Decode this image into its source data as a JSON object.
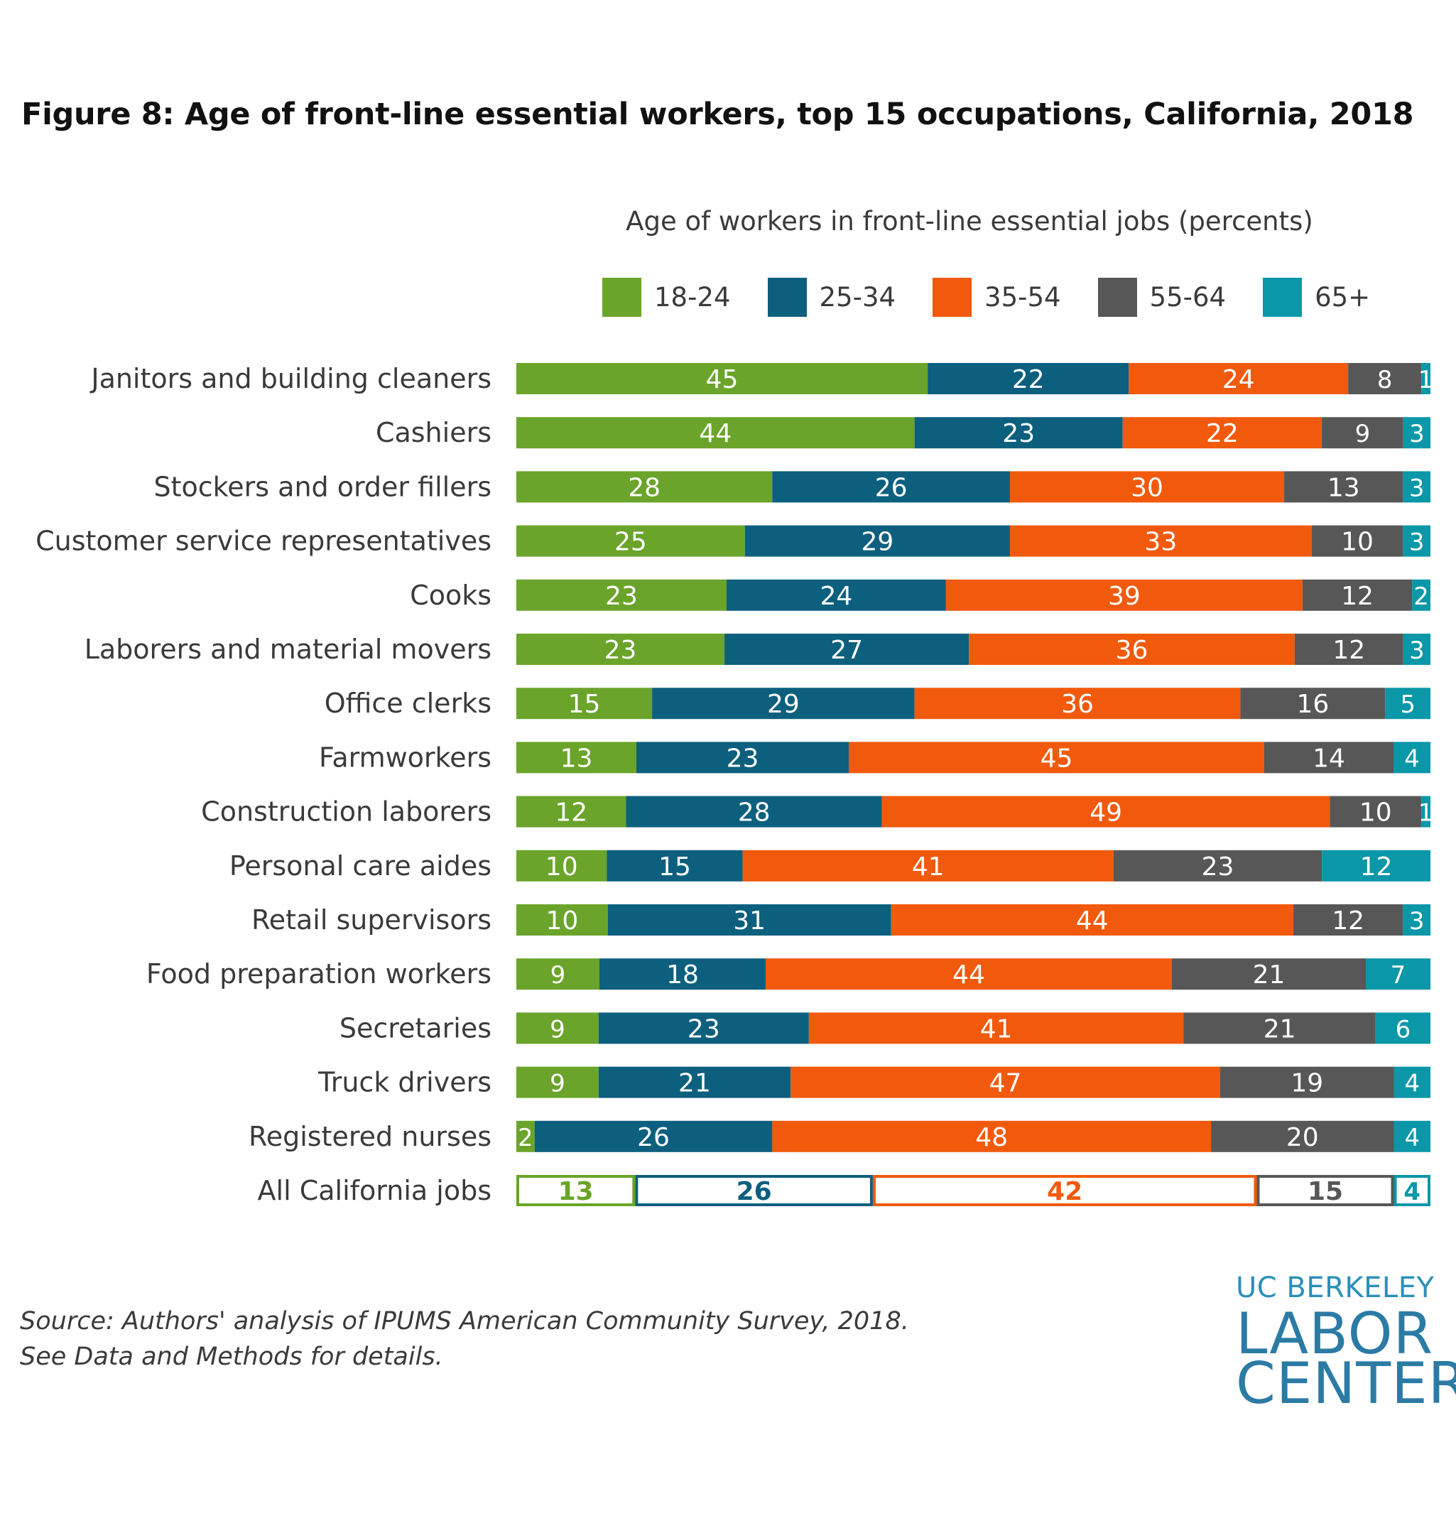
{
  "chart_data": {
    "type": "bar",
    "orientation": "horizontal",
    "stacked": true,
    "title": "Figure 8: Age of front-line essential workers, top 15 occupations, California, 2018",
    "subtitle": "Age of workers in front-line essential jobs (percents)",
    "legend_position": "top",
    "categories": [
      "Janitors and building cleaners",
      "Cashiers",
      "Stockers and order fillers",
      "Customer service representatives",
      "Cooks",
      "Laborers and material movers",
      "Office clerks",
      "Farmworkers",
      "Construction laborers",
      "Personal care aides",
      "Retail supervisors",
      "Food preparation workers",
      "Secretaries",
      "Truck drivers",
      "Registered nurses",
      "All California jobs"
    ],
    "series": [
      {
        "name": "18-24",
        "color": "#6aa42a",
        "values": [
          45,
          44,
          28,
          25,
          23,
          23,
          15,
          13,
          12,
          10,
          10,
          9,
          9,
          9,
          2,
          13
        ]
      },
      {
        "name": "25-34",
        "color": "#0d5f7e",
        "values": [
          22,
          23,
          26,
          29,
          24,
          27,
          29,
          23,
          28,
          15,
          31,
          18,
          23,
          21,
          26,
          26
        ]
      },
      {
        "name": "35-54",
        "color": "#f15a0c",
        "values": [
          24,
          22,
          30,
          33,
          39,
          36,
          36,
          45,
          49,
          41,
          44,
          44,
          41,
          47,
          48,
          42
        ]
      },
      {
        "name": "55-64",
        "color": "#575757",
        "values": [
          8,
          9,
          13,
          10,
          12,
          12,
          16,
          14,
          10,
          23,
          12,
          21,
          21,
          19,
          20,
          15
        ]
      },
      {
        "name": "65+",
        "color": "#0a97a8",
        "values": [
          1,
          3,
          3,
          3,
          2,
          3,
          5,
          4,
          1,
          12,
          3,
          7,
          6,
          4,
          4,
          4
        ]
      }
    ],
    "outlined_rows": [
      "All California jobs"
    ],
    "xlim": [
      0,
      100
    ],
    "grid": false
  },
  "source": {
    "line1": "Source: Authors' analysis of IPUMS American Community Survey, 2018.",
    "line2": "See Data and Methods for details."
  },
  "logo": {
    "line1": "UC BERKELEY",
    "line2": "LABOR",
    "line3": "CENTER"
  }
}
